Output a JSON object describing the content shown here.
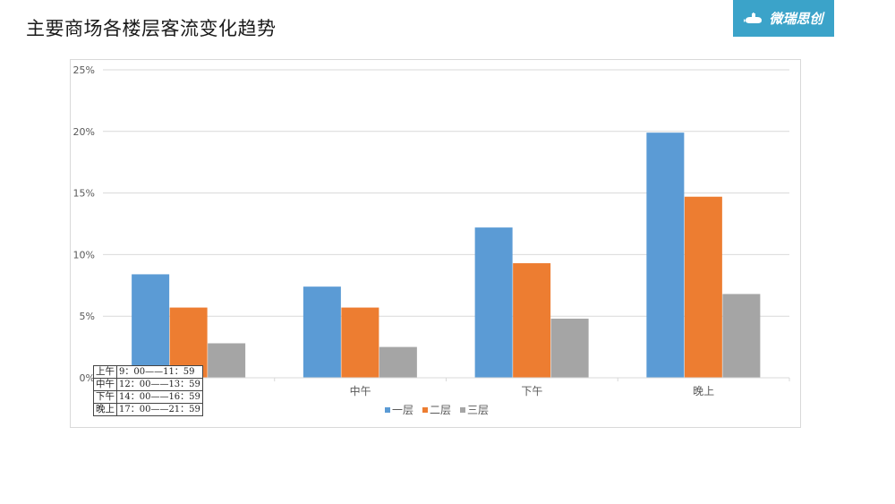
{
  "page": {
    "title": "主要商场各楼层客流变化趋势",
    "logo_text": "微瑞思创",
    "logo_icon": "submarine-icon"
  },
  "colors": {
    "series": [
      "#5b9bd5",
      "#ed7d31",
      "#a5a5a5"
    ],
    "logo_bg": "#3ba3c9",
    "grid": "#d9d9d9"
  },
  "chart_data": {
    "type": "bar",
    "categories": [
      "上午",
      "中午",
      "下午",
      "晚上"
    ],
    "series": [
      {
        "name": "一层",
        "values": [
          8.4,
          7.4,
          12.2,
          19.9
        ]
      },
      {
        "name": "二层",
        "values": [
          5.7,
          5.7,
          9.3,
          14.7
        ]
      },
      {
        "name": "三层",
        "values": [
          2.8,
          2.5,
          4.8,
          6.8
        ]
      }
    ],
    "yticks": [
      "0%",
      "5%",
      "10%",
      "15%",
      "20%",
      "25%"
    ],
    "ylim": [
      0,
      25
    ],
    "unit": "%",
    "grid": true,
    "legend_position": "bottom",
    "title": "",
    "xlabel": "",
    "ylabel": ""
  },
  "time_table": [
    {
      "label": "上午",
      "range": "9：00——11：59"
    },
    {
      "label": "中午",
      "range": "12：00——13：59"
    },
    {
      "label": "下午",
      "range": "14：00——16：59"
    },
    {
      "label": "晚上",
      "range": "17：00——21：59"
    }
  ]
}
